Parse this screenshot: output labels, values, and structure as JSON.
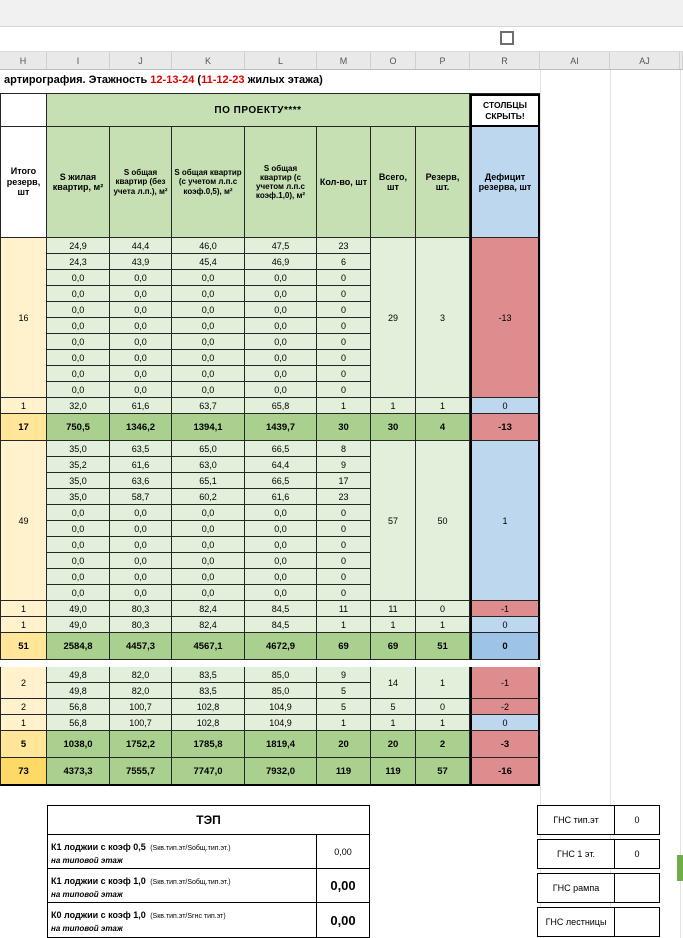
{
  "columns": [
    "H",
    "I",
    "J",
    "K",
    "L",
    "M",
    "O",
    "P",
    "R",
    "AI",
    "AJ"
  ],
  "title": {
    "segments": [
      {
        "text": "артирография. Этажность ",
        "red": false
      },
      {
        "text": "12-13-24",
        "red": true
      },
      {
        "text": " (",
        "red": false
      },
      {
        "text": "11-12-23",
        "red": true
      },
      {
        "text": " жилых этажа)",
        "red": false
      }
    ]
  },
  "band": {
    "project_label": "ПО ПРОЕКТУ****",
    "hide_label": "СТОЛБЦЫ СКРЫТЬ!"
  },
  "headers": [
    "Итого резерв, шт",
    "S жилая квартир, м²",
    "S общая квартир (без учета л.п.), м²",
    "S общая квартир (с учетом л.п.с коэф.0,5), м²",
    "S общая квартир (с учетом л.п.с коэф.1,0), м²",
    "Кол-во, шт",
    "Всего, шт",
    "Резерв, шт.",
    "Дефицит резерва, шт"
  ],
  "blocks": [
    {
      "type": "sec",
      "h": "16",
      "rows": [
        [
          "24,9",
          "44,4",
          "46,0",
          "47,5",
          "23"
        ],
        [
          "24,3",
          "43,9",
          "45,4",
          "46,9",
          "6"
        ],
        [
          "0,0",
          "0,0",
          "0,0",
          "0,0",
          "0"
        ],
        [
          "0,0",
          "0,0",
          "0,0",
          "0,0",
          "0"
        ],
        [
          "0,0",
          "0,0",
          "0,0",
          "0,0",
          "0"
        ],
        [
          "0,0",
          "0,0",
          "0,0",
          "0,0",
          "0"
        ],
        [
          "0,0",
          "0,0",
          "0,0",
          "0,0",
          "0"
        ],
        [
          "0,0",
          "0,0",
          "0,0",
          "0,0",
          "0"
        ],
        [
          "0,0",
          "0,0",
          "0,0",
          "0,0",
          "0"
        ],
        [
          "0,0",
          "0,0",
          "0,0",
          "0,0",
          "0"
        ]
      ],
      "total": "29",
      "reserve": "3",
      "deficit": "-13",
      "dstyle": "pink"
    },
    {
      "type": "sub",
      "h": "1",
      "row": [
        "32,0",
        "61,6",
        "63,7",
        "65,8",
        "1"
      ],
      "total": "1",
      "reserve": "1",
      "deficit": "0",
      "dstyle": "blue"
    },
    {
      "type": "total",
      "h": "17",
      "hstyle": "gold",
      "row": [
        "750,5",
        "1346,2",
        "1394,1",
        "1439,7",
        "30"
      ],
      "total": "30",
      "reserve": "4",
      "deficit": "-13",
      "dstyle": "pink"
    },
    {
      "type": "sec",
      "h": "49",
      "rows": [
        [
          "35,0",
          "63,5",
          "65,0",
          "66,5",
          "8"
        ],
        [
          "35,2",
          "61,6",
          "63,0",
          "64,4",
          "9"
        ],
        [
          "35,0",
          "63,6",
          "65,1",
          "66,5",
          "17"
        ],
        [
          "35,0",
          "58,7",
          "60,2",
          "61,6",
          "23"
        ],
        [
          "0,0",
          "0,0",
          "0,0",
          "0,0",
          "0"
        ],
        [
          "0,0",
          "0,0",
          "0,0",
          "0,0",
          "0"
        ],
        [
          "0,0",
          "0,0",
          "0,0",
          "0,0",
          "0"
        ],
        [
          "0,0",
          "0,0",
          "0,0",
          "0,0",
          "0"
        ],
        [
          "0,0",
          "0,0",
          "0,0",
          "0,0",
          "0"
        ],
        [
          "0,0",
          "0,0",
          "0,0",
          "0,0",
          "0"
        ]
      ],
      "total": "57",
      "reserve": "50",
      "deficit": "1",
      "dstyle": "blue"
    },
    {
      "type": "sub",
      "h": "1",
      "row": [
        "49,0",
        "80,3",
        "82,4",
        "84,5",
        "11"
      ],
      "total": "11",
      "reserve": "0",
      "deficit": "-1",
      "dstyle": "pink"
    },
    {
      "type": "sub",
      "h": "1",
      "row": [
        "49,0",
        "80,3",
        "82,4",
        "84,5",
        "1"
      ],
      "total": "1",
      "reserve": "1",
      "deficit": "0",
      "dstyle": "blue"
    },
    {
      "type": "total",
      "h": "51",
      "hstyle": "gold",
      "row": [
        "2584,8",
        "4457,3",
        "4567,1",
        "4672,9",
        "69"
      ],
      "total": "69",
      "reserve": "51",
      "deficit": "0",
      "dstyle": "dblue"
    },
    {
      "type": "spacer"
    },
    {
      "type": "sec",
      "h": "2",
      "rows": [
        [
          "49,8",
          "82,0",
          "83,5",
          "85,0",
          "9"
        ],
        [
          "49,8",
          "82,0",
          "83,5",
          "85,0",
          "5"
        ]
      ],
      "total": "14",
      "reserve": "1",
      "deficit": "-1",
      "dstyle": "pink"
    },
    {
      "type": "sub",
      "h": "2",
      "row": [
        "56,8",
        "100,7",
        "102,8",
        "104,9",
        "5"
      ],
      "total": "5",
      "reserve": "0",
      "deficit": "-2",
      "dstyle": "pink"
    },
    {
      "type": "sub",
      "h": "1",
      "row": [
        "56,8",
        "100,7",
        "102,8",
        "104,9",
        "1"
      ],
      "total": "1",
      "reserve": "1",
      "deficit": "0",
      "dstyle": "blue"
    },
    {
      "type": "total",
      "h": "5",
      "hstyle": "gold",
      "row": [
        "1038,0",
        "1752,2",
        "1785,8",
        "1819,4",
        "20"
      ],
      "total": "20",
      "reserve": "2",
      "deficit": "-3",
      "dstyle": "pink"
    },
    {
      "type": "total",
      "h": "73",
      "hstyle": "deep",
      "row": [
        "4373,3",
        "7555,7",
        "7747,0",
        "7932,0",
        "119"
      ],
      "total": "119",
      "reserve": "57",
      "deficit": "-16",
      "dstyle": "pink"
    }
  ],
  "tep": {
    "title": "ТЭП",
    "rows": [
      {
        "k": "К1 лоджии с коэф 0,5",
        "f": "(Sкв.тип.эт/Sобщ.тип.эт.)",
        "sub": "на типовой этаж",
        "v": "0,00"
      },
      {
        "k": "К1 лоджии с коэф 1,0",
        "f": "(Sкв.тип.эт/Sобщ.тип.эт.)",
        "sub": "на типовой этаж",
        "v": "0,00"
      },
      {
        "k": "К0 лоджии с коэф 1,0",
        "f": "(Sкв.тип.эт/Sгнс тип.эт)",
        "sub": "на типовой этаж",
        "v": "0,00"
      }
    ]
  },
  "gns": {
    "rows": [
      {
        "label": "ГНС тип.эт",
        "value": "0"
      },
      {
        "label": "ГНС 1 эт.",
        "value": "0"
      },
      {
        "label": "ГНС рампа",
        "value": ""
      },
      {
        "label": "ГНС лестницы",
        "value": ""
      }
    ]
  },
  "colors": {
    "band_green": "#c6e0b4",
    "data_green": "#e2efda",
    "total_green": "#a9d08e",
    "pale_yellow": "#fff2cc",
    "gold": "#ffe699",
    "deep_gold": "#ffd966",
    "pink": "#dd8d8d",
    "light_blue": "#bdd7ee",
    "dark_blue": "#9dc3e6",
    "red_text": "#e00000",
    "sliver_green": "#6fad47"
  }
}
